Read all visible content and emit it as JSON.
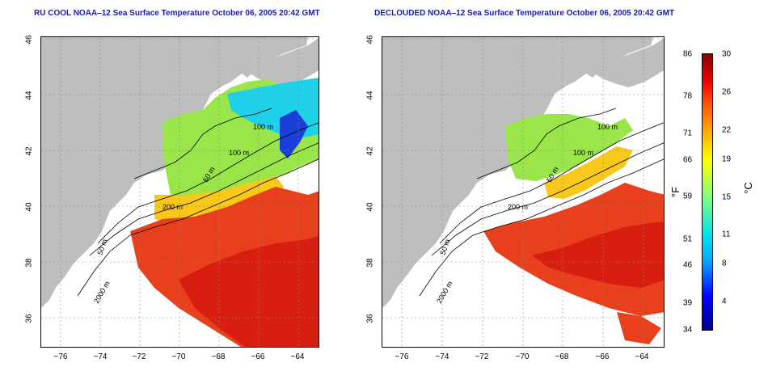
{
  "left_map": {
    "title": "RU COOL NOAA‒12 Sea Surface Temperature October 06, 2005 20:42 GMT"
  },
  "right_map": {
    "title": "DECLOUDED NOAA‒12 Sea Surface Temperature October 06, 2005 20:42 GMT"
  },
  "axes": {
    "x_ticks": [
      "−76",
      "−74",
      "−72",
      "−70",
      "−68",
      "−66",
      "−64"
    ],
    "y_ticks": [
      "46",
      "44",
      "42",
      "40",
      "38",
      "36"
    ]
  },
  "contour_labels": [
    "100 m",
    "100 m",
    "50 m",
    "200 m",
    "50 m",
    "2000 m"
  ],
  "colorbar": {
    "fahrenheit_ticks": [
      "86",
      "78",
      "71",
      "66",
      "59",
      "51",
      "46",
      "39",
      "34"
    ],
    "celsius_ticks": [
      "30",
      "26",
      "22",
      "19",
      "15",
      "11",
      "8",
      "4"
    ],
    "unit_f": "°F",
    "unit_c": "°C"
  },
  "colors": {
    "land": "#bebebe",
    "warm": "#e8401c",
    "hot": "#d81e10",
    "mild": "#f8c81a",
    "cool": "#9ae64a",
    "cold": "#1ed0e8",
    "title": "#1a1aa6"
  }
}
